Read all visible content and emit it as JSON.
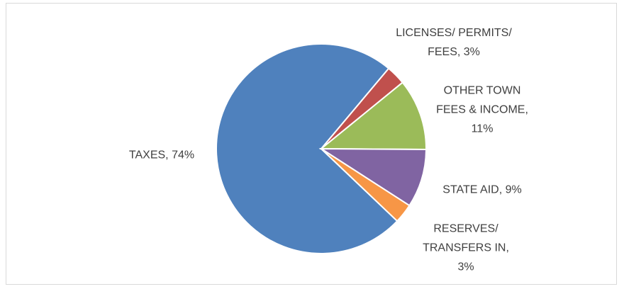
{
  "chart_data": {
    "type": "pie",
    "values": [
      74,
      3,
      11,
      9,
      3
    ],
    "value_labels": [
      "TAXES, 74%",
      "LICENSES/ PERMITS/ FEES, 3%",
      "OTHER TOWN FEES & INCOME, 11%",
      "STATE AID, 9%",
      "RESERVES/ TRANSFERS IN, 3%"
    ],
    "colors": [
      "#4f81bd",
      "#c0504d",
      "#9bbb59",
      "#8064a2",
      "#f79646"
    ]
  }
}
